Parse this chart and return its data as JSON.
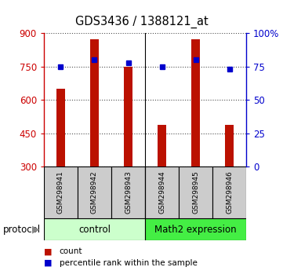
{
  "title": "GDS3436 / 1388121_at",
  "samples": [
    "GSM298941",
    "GSM298942",
    "GSM298943",
    "GSM298944",
    "GSM298945",
    "GSM298946"
  ],
  "counts": [
    650,
    875,
    750,
    490,
    875,
    490
  ],
  "percentiles": [
    75,
    80,
    78,
    75,
    80,
    73
  ],
  "ylim_left": [
    300,
    900
  ],
  "ylim_right": [
    0,
    100
  ],
  "yticks_left": [
    300,
    450,
    600,
    750,
    900
  ],
  "ytick_labels_left": [
    "300",
    "450",
    "600",
    "750",
    "900"
  ],
  "yticks_right": [
    0,
    25,
    50,
    75,
    100
  ],
  "ytick_labels_right": [
    "0",
    "25",
    "50",
    "75",
    "100%"
  ],
  "bar_color": "#bb1100",
  "dot_color": "#0000cc",
  "group_control_color": "#ccffcc",
  "group_math2_color": "#44ee44",
  "protocol_label": "protocol",
  "legend_items": [
    {
      "label": "count",
      "color": "#bb1100"
    },
    {
      "label": "percentile rank within the sample",
      "color": "#0000cc"
    }
  ],
  "sample_box_color": "#cccccc",
  "figure_bg": "#ffffff",
  "bar_width": 0.25
}
